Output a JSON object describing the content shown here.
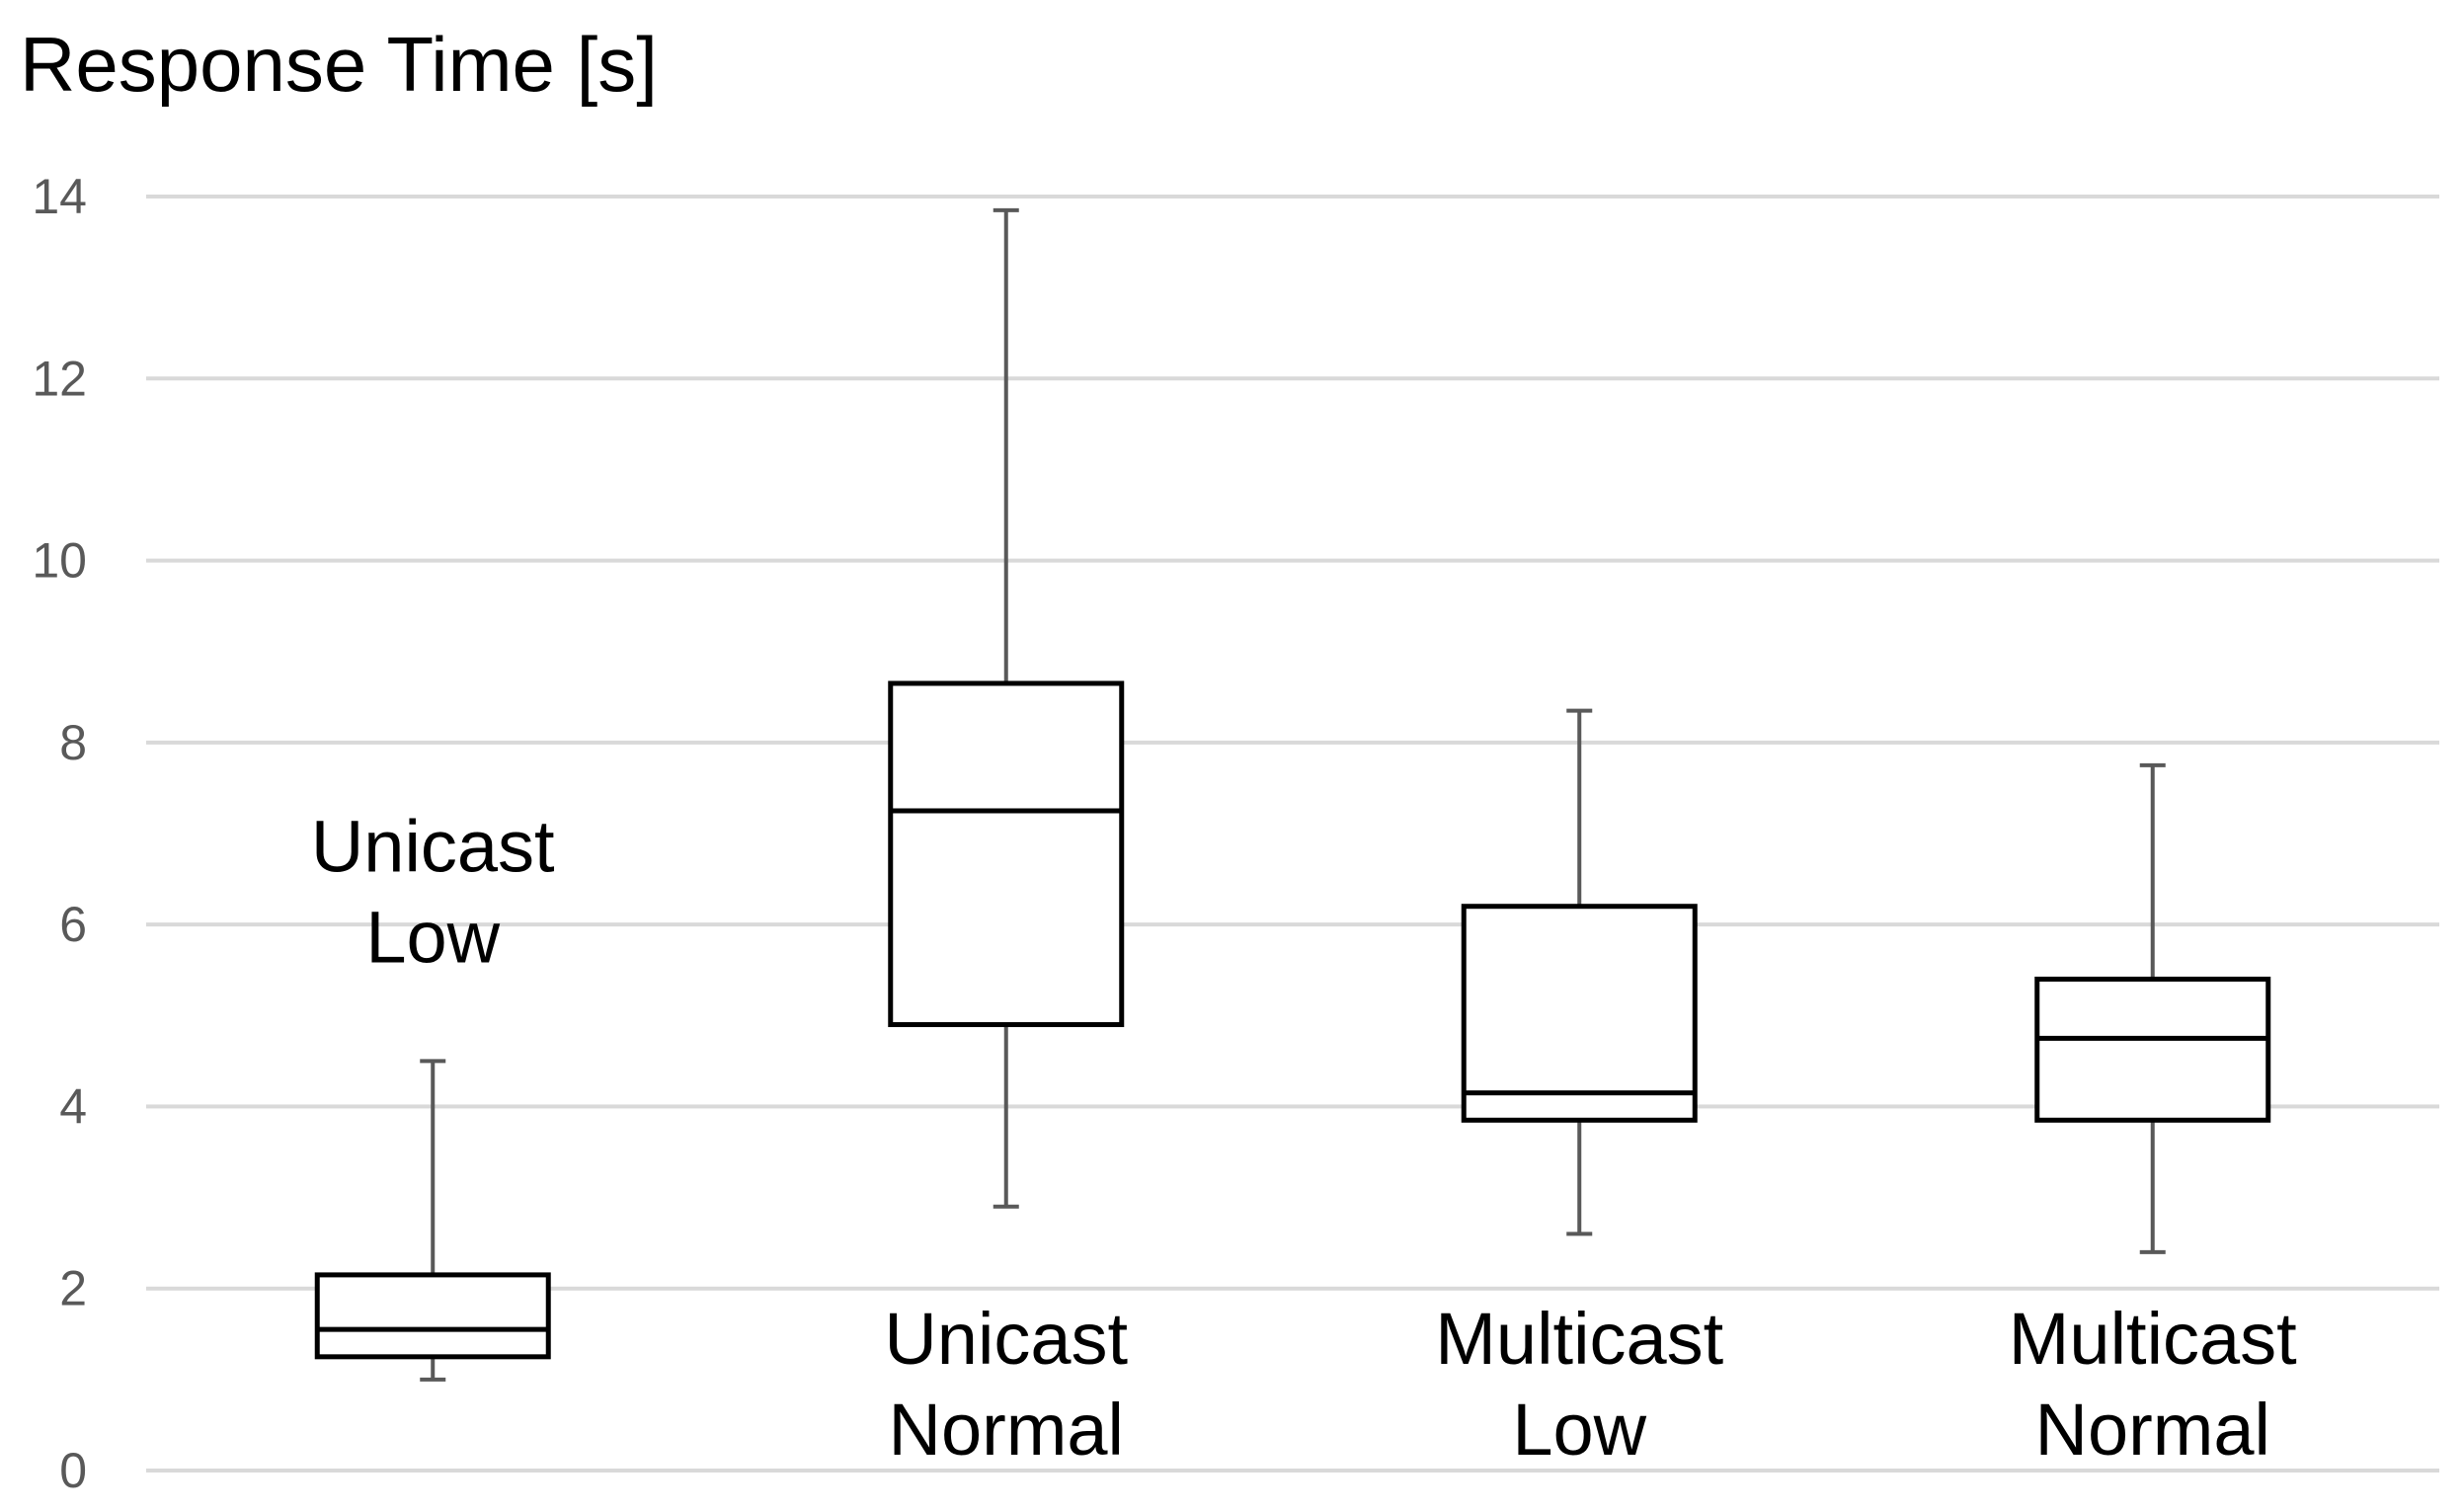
{
  "chart_data": {
    "type": "box",
    "ylabel": "Response Time [s]",
    "xlabel": "",
    "ylim": [
      0,
      14
    ],
    "yticks": [
      "0",
      "2",
      "4",
      "6",
      "8",
      "10",
      "12",
      "14"
    ],
    "grid": true,
    "categories": [
      {
        "label_lines": [
          "Unicast",
          "Low"
        ],
        "label_position": "above"
      },
      {
        "label_lines": [
          "Unicast",
          "Normal"
        ],
        "label_position": "below"
      },
      {
        "label_lines": [
          "Multicast",
          "Low"
        ],
        "label_position": "below"
      },
      {
        "label_lines": [
          "Multicast",
          "Normal"
        ],
        "label_position": "below"
      }
    ],
    "boxes": [
      {
        "min": 1.0,
        "q1": 1.25,
        "median": 1.55,
        "q3": 2.15,
        "max": 4.5
      },
      {
        "min": 2.9,
        "q1": 4.9,
        "median": 7.25,
        "q3": 8.65,
        "max": 13.85
      },
      {
        "min": 2.6,
        "q1": 3.85,
        "median": 4.15,
        "q3": 6.2,
        "max": 8.35
      },
      {
        "min": 2.4,
        "q1": 3.85,
        "median": 4.75,
        "q3": 5.4,
        "max": 7.75
      }
    ],
    "colors": {
      "grid": "#d9d9d9",
      "box": "#000000",
      "whisker": "#595959",
      "tick_label": "#595959"
    }
  }
}
